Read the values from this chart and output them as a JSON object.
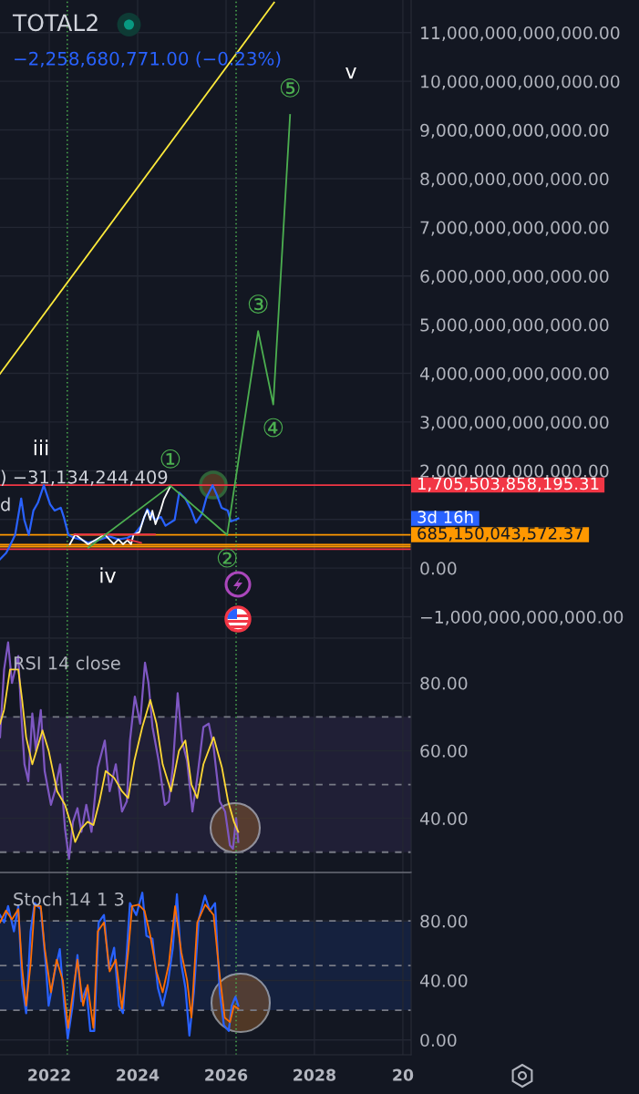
{
  "chart_data": [
    {
      "type": "line",
      "title": "TOTAL2",
      "subtitle": "−2,258,680,771.00 (−0.23%)",
      "series": [
        {
          "color": "#2962ff",
          "x": [
            "2020-11-20",
            "2021-01-10",
            "2021-02-04",
            "2021-03-25",
            "2021-05-14",
            "2021-06-09",
            "2021-07-16",
            "2021-08-23",
            "2021-09-29",
            "2021-11-17",
            "2022-01-08",
            "2022-02-15",
            "2022-04-06",
            "2022-05-01",
            "2022-06-08",
            "2022-07-28",
            "2022-09-16",
            "2022-11-18",
            "2023-02-26",
            "2023-05-12",
            "2023-07-26",
            "2023-10-09",
            "2023-12-11",
            "2024-01-30",
            "2024-03-21",
            "2024-05-23",
            "2024-07-12",
            "2024-08-19",
            "2024-11-02",
            "2024-12-10",
            "2025-01-29",
            "2025-03-21",
            "2025-04-27",
            "2025-06-17",
            "2025-07-24",
            "2025-09-12",
            "2025-10-19",
            "2025-11-25",
            "2026-01-15",
            "2026-02-09",
            "2026-03-17",
            "2026-04-12"
          ],
          "values": [
            180000000000,
            310000000000,
            430000000000,
            680000000000,
            1430000000000,
            990000000000,
            680000000000,
            1180000000000,
            1340000000000,
            1700000000000,
            1310000000000,
            1180000000000,
            1240000000000,
            1050000000000,
            680000000000,
            620000000000,
            590000000000,
            520000000000,
            590000000000,
            650000000000,
            590000000000,
            620000000000,
            710000000000,
            870000000000,
            1210000000000,
            990000000000,
            1050000000000,
            870000000000,
            990000000000,
            1550000000000,
            1430000000000,
            1180000000000,
            930000000000,
            1120000000000,
            1460000000000,
            1700000000000,
            1490000000000,
            1240000000000,
            1180000000000,
            960000000000,
            990000000000,
            1020000000000
          ]
        },
        {
          "color": "#ffffff",
          "x": [
            "2022-06-20",
            "2022-08-04",
            "2022-11-18",
            "2023-04-05",
            "2023-06-19",
            "2023-07-26",
            "2023-09-02",
            "2023-10-09",
            "2023-11-08",
            "2023-11-28",
            "2024-01-17",
            "2024-02-24",
            "2024-03-21",
            "2024-04-15",
            "2024-05-02",
            "2024-05-28",
            "2024-07-12",
            "2024-08-06",
            "2024-09-26"
          ],
          "values": [
            490000000000,
            690000000000,
            490000000000,
            690000000000,
            490000000000,
            590000000000,
            490000000000,
            570000000000,
            490000000000,
            680000000000,
            740000000000,
            1050000000000,
            1190000000000,
            990000000000,
            1180000000000,
            900000000000,
            1210000000000,
            1420000000000,
            1670000000000
          ]
        },
        {
          "color": "#f23645",
          "x": [
            "2022-07-27",
            "2024-05-23"
          ],
          "values": [
            690000000000,
            690000000000
          ]
        },
        {
          "color": "#f23645",
          "x": [
            "2023-10-09",
            "2024-01-30"
          ],
          "values": [
            590000000000,
            520000000000
          ]
        },
        {
          "color": "#4caf50",
          "x": [
            "2022-11-20",
            "2024-09-28",
            "2026-01-10",
            "2026-09-23",
            "2027-01-26",
            "2027-06-14"
          ],
          "values": [
            420000000000,
            1690000000000,
            680000000000,
            4870000000000,
            3360000000000,
            9310000000000
          ],
          "value_labels": [
            null,
            "①",
            "②",
            "③",
            "④",
            "⑤"
          ]
        },
        {
          "color": "#ffeb3b",
          "x": [
            "2020-11-20",
            "2027-02-02"
          ],
          "values": [
            3990000000000,
            11620000000000
          ]
        }
      ],
      "xlim": [
        "2020-11-20",
        "2030-03-10"
      ],
      "xticks": [
        "2022",
        "2024",
        "2026",
        "2028",
        "2030"
      ],
      "ylim": [
        -1440000000000,
        11670000000000
      ],
      "yticks": [
        {
          "value": -1000000000000,
          "label": "−1,000,000,000,000.00"
        },
        {
          "value": 0,
          "label": "0.00"
        },
        {
          "value": 1000000000000,
          "label": null
        },
        {
          "value": 2000000000000,
          "label": "2,000,000,000,000.00"
        },
        {
          "value": 3000000000000,
          "label": "3,000,000,000,000.00"
        },
        {
          "value": 4000000000000,
          "label": "4,000,000,000,000.00"
        },
        {
          "value": 5000000000000,
          "label": "5,000,000,000,000.00"
        },
        {
          "value": 6000000000000,
          "label": "6,000,000,000,000.00"
        },
        {
          "value": 7000000000000,
          "label": "7,000,000,000,000.00"
        },
        {
          "value": 8000000000000,
          "label": "8,000,000,000,000.00"
        },
        {
          "value": 9000000000000,
          "label": "9,000,000,000,000.00"
        },
        {
          "value": 10000000000000,
          "label": "10,000,000,000,000.00"
        },
        {
          "value": 11000000000000,
          "label": "11,000,000,000,000.00"
        }
      ],
      "ref_lines": [
        {
          "axis": "y",
          "value": 1705503858195.31,
          "label": "1,705,503,858,195.31",
          "color": "#f23645"
        },
        {
          "axis": "y",
          "value": 390000000000,
          "color": "#f23645"
        },
        {
          "axis": "y",
          "value": 480000000000,
          "color": "#ff9800"
        },
        {
          "axis": "y",
          "value": 440000000000,
          "color": "#ff9800"
        },
        {
          "axis": "y",
          "value": 685150043572.37,
          "label": "685,150,043,572.37",
          "color": "#ff9800"
        },
        {
          "axis": "x",
          "value": "2022-05-30",
          "color": "#4caf50",
          "line_style": "dotted"
        },
        {
          "axis": "x",
          "value": "2026-03-25",
          "color": "#4caf50",
          "line_style": "dotted"
        }
      ],
      "annotations": [
        ") −31,134,244,409",
        "d",
        "iii",
        "iv",
        "v",
        "3d 16h"
      ],
      "grid": true,
      "tick_labels": "y"
    },
    {
      "type": "line",
      "title": "RSI 14 close",
      "series": [
        {
          "color": "#7e57c2",
          "x": [
            "2020-11-20",
            "2020-12-24",
            "2021-01-26",
            "2021-02-27",
            "2021-04-20",
            "2021-05-11",
            "2021-06-10",
            "2021-07-12",
            "2021-08-14",
            "2021-09-13",
            "2021-10-23",
            "2021-11-24",
            "2022-01-15",
            "2022-02-16",
            "2022-04-01",
            "2022-05-11",
            "2022-06-13",
            "2022-07-16",
            "2022-08-22",
            "2022-09-23",
            "2022-11-03",
            "2022-12-16",
            "2023-02-06",
            "2023-04-05",
            "2023-05-15",
            "2023-07-05",
            "2023-08-25",
            "2023-10-04",
            "2023-10-30",
            "2023-12-09",
            "2024-01-22",
            "2024-03-02",
            "2024-03-31",
            "2024-05-03",
            "2024-06-23",
            "2024-08-13",
            "2024-09-15",
            "2024-10-18",
            "2024-11-27",
            "2025-01-01",
            "2025-02-13",
            "2025-03-29",
            "2025-05-08",
            "2025-06-28",
            "2025-08-11",
            "2025-09-20",
            "2025-11-10",
            "2025-12-24",
            "2026-02-02",
            "2026-02-27",
            "2026-03-25",
            "2026-04-12"
          ],
          "values": [
            64,
            84,
            92,
            80,
            88,
            73,
            56,
            51,
            71,
            60,
            72,
            54,
            44,
            48,
            56,
            37,
            28,
            39,
            43,
            36,
            44,
            36,
            55,
            63,
            48,
            56,
            42,
            45,
            63,
            76,
            68,
            86,
            80,
            67,
            57,
            44,
            45,
            55,
            77,
            63,
            57,
            42,
            52,
            67,
            68,
            61,
            45,
            42,
            32,
            31,
            40,
            33
          ]
        },
        {
          "color": "#fdd835",
          "x": [
            "2020-11-20",
            "2020-12-23",
            "2021-02-11",
            "2021-04-20",
            "2021-05-22",
            "2021-06-24",
            "2021-08-14",
            "2021-10-04",
            "2021-11-06",
            "2021-12-27",
            "2022-03-07",
            "2022-05-11",
            "2022-07-01",
            "2022-08-03",
            "2022-09-23",
            "2022-11-14",
            "2023-01-01",
            "2023-02-20",
            "2023-04-12",
            "2023-06-21",
            "2023-08-25",
            "2023-10-15",
            "2023-12-05",
            "2024-02-09",
            "2024-04-15",
            "2024-06-05",
            "2024-07-26",
            "2024-10-03",
            "2024-12-08",
            "2025-01-30",
            "2025-03-21",
            "2025-05-08",
            "2025-06-28",
            "2025-09-20",
            "2025-11-28",
            "2026-01-18",
            "2026-03-07",
            "2026-04-12"
          ],
          "values": [
            68,
            72,
            84,
            84,
            75,
            64,
            56,
            62,
            66,
            60,
            48,
            44,
            38,
            33,
            37,
            39,
            38,
            45,
            54,
            52,
            48,
            46,
            57,
            67,
            75,
            68,
            56,
            48,
            60,
            63,
            50,
            46,
            56,
            64,
            55,
            45,
            39,
            36
          ]
        }
      ],
      "xlim": [
        "2020-11-20",
        "2030-03-10"
      ],
      "xticks": [
        "2022",
        "2024",
        "2026",
        "2028",
        "2030"
      ],
      "ylim": [
        24,
        93
      ],
      "yticks": [
        {
          "value": 40,
          "label": "40.00"
        },
        {
          "value": 60,
          "label": "60.00"
        },
        {
          "value": 80,
          "label": "80.00"
        }
      ],
      "ref_lines": [
        {
          "axis": "y",
          "value": 70,
          "color": "#787b86",
          "line_style": "dashed"
        },
        {
          "axis": "y",
          "value": 50,
          "color": "#787b86",
          "line_style": "dashed"
        },
        {
          "axis": "y",
          "value": 30,
          "color": "#787b86",
          "line_style": "dashed"
        },
        {
          "axis": "x",
          "value": "2022-05-30",
          "color": "#4caf50",
          "line_style": "dotted"
        },
        {
          "axis": "x",
          "value": "2026-03-25",
          "color": "#4caf50",
          "line_style": "dotted"
        }
      ],
      "bands": [
        {
          "axis": "y",
          "from": 30,
          "to": 70,
          "color": "#7e57c2"
        }
      ],
      "grid": true,
      "tick_labels": "y"
    },
    {
      "type": "line",
      "title": "Stoch 14 1 3",
      "series": [
        {
          "color": "#2962ff",
          "x": [
            "2020-11-20",
            "2020-12-24",
            "2021-01-26",
            "2021-03-15",
            "2021-04-20",
            "2021-05-22",
            "2021-06-24",
            "2021-07-31",
            "2021-09-02",
            "2021-10-23",
            "2021-12-03",
            "2021-12-27",
            "2022-02-16",
            "2022-03-29",
            "2022-05-05",
            "2022-06-03",
            "2022-07-13",
            "2022-08-22",
            "2022-09-23",
            "2022-11-03",
            "2022-12-06",
            "2023-01-08",
            "2023-02-13",
            "2023-03-29",
            "2023-05-09",
            "2023-06-21",
            "2023-07-31",
            "2023-09-02",
            "2023-10-04",
            "2023-10-30",
            "2023-12-21",
            "2024-02-09",
            "2024-03-14",
            "2024-05-03",
            "2024-06-17",
            "2024-07-26",
            "2024-09-05",
            "2024-10-18",
            "2024-11-21",
            "2024-12-27",
            "2025-01-30",
            "2025-03-04",
            "2025-04-10",
            "2025-05-20",
            "2025-07-10",
            "2025-08-19",
            "2025-10-02",
            "2025-11-10",
            "2025-12-14",
            "2026-01-23",
            "2026-02-17",
            "2026-03-19",
            "2026-04-12"
          ],
          "values": [
            84,
            79,
            90,
            73,
            90,
            37,
            18,
            73,
            92,
            88,
            51,
            23,
            46,
            61,
            23,
            1,
            23,
            57,
            26,
            35,
            6,
            6,
            79,
            84,
            48,
            62,
            23,
            18,
            59,
            92,
            84,
            99,
            70,
            68,
            35,
            23,
            37,
            62,
            98,
            51,
            35,
            3,
            32,
            81,
            97,
            87,
            92,
            32,
            10,
            6,
            23,
            29,
            23
          ]
        },
        {
          "color": "#ff6d00",
          "x": [
            "2020-11-20",
            "2021-01-08",
            "2021-02-27",
            "2021-04-20",
            "2021-05-22",
            "2021-06-24",
            "2021-07-31",
            "2021-09-02",
            "2021-10-23",
            "2021-11-24",
            "2022-01-15",
            "2022-03-03",
            "2022-04-23",
            "2022-06-06",
            "2022-07-16",
            "2022-08-22",
            "2022-10-08",
            "2022-11-14",
            "2023-01-01",
            "2023-02-06",
            "2023-03-29",
            "2023-05-15",
            "2023-07-05",
            "2023-08-25",
            "2023-10-15",
            "2023-11-17",
            "2024-01-08",
            "2024-02-27",
            "2024-04-15",
            "2024-06-05",
            "2024-07-26",
            "2024-09-15",
            "2024-11-06",
            "2024-12-27",
            "2025-02-13",
            "2025-03-21",
            "2025-05-08",
            "2025-07-13",
            "2025-09-20",
            "2025-11-10",
            "2025-12-21",
            "2026-02-02",
            "2026-03-07",
            "2026-04-12"
          ],
          "values": [
            79,
            87,
            81,
            88,
            48,
            23,
            51,
            90,
            90,
            62,
            32,
            54,
            40,
            8,
            32,
            54,
            23,
            37,
            8,
            73,
            79,
            46,
            54,
            21,
            59,
            90,
            91,
            87,
            70,
            46,
            32,
            51,
            90,
            59,
            40,
            15,
            79,
            91,
            84,
            43,
            15,
            12,
            23,
            21
          ]
        }
      ],
      "xlim": [
        "2020-11-20",
        "2030-03-10"
      ],
      "xticks": [
        "2022",
        "2024",
        "2026",
        "2028",
        {
          "value": "2030",
          "label": "20"
        }
      ],
      "ylim": [
        -10,
        112
      ],
      "yticks": [
        {
          "value": 0,
          "label": "0.00"
        },
        {
          "value": 40,
          "label": "40.00"
        },
        {
          "value": 80,
          "label": "80.00"
        }
      ],
      "ref_lines": [
        {
          "axis": "y",
          "value": 80,
          "color": "#787b86",
          "line_style": "dashed"
        },
        {
          "axis": "y",
          "value": 50,
          "color": "#787b86",
          "line_style": "dashed"
        },
        {
          "axis": "y",
          "value": 20,
          "color": "#787b86",
          "line_style": "dashed"
        },
        {
          "axis": "x",
          "value": "2022-05-30",
          "color": "#4caf50",
          "line_style": "dotted"
        },
        {
          "axis": "x",
          "value": "2026-03-25",
          "color": "#4caf50",
          "line_style": "dotted"
        }
      ],
      "bands": [
        {
          "axis": "y",
          "from": 20,
          "to": 80,
          "color": "#2962ff"
        }
      ],
      "grid": true
    }
  ]
}
